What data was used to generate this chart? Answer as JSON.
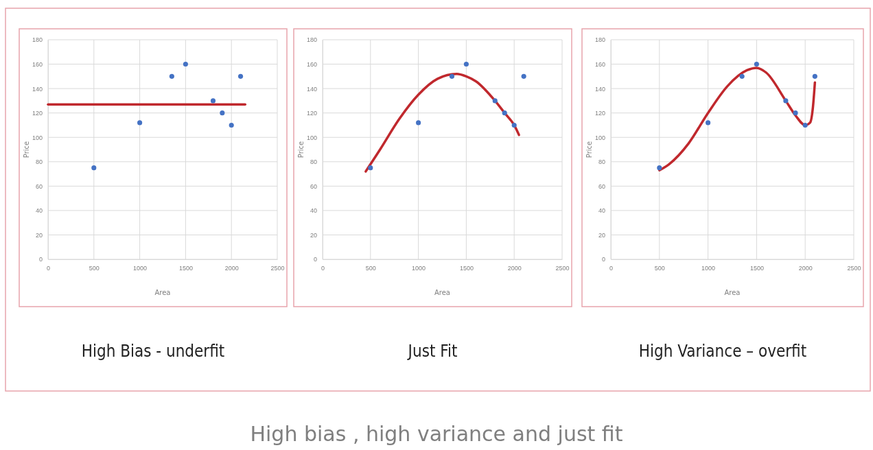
{
  "chart_data": [
    {
      "type": "scatter",
      "title": "High Bias - underfit",
      "xlabel": "Area",
      "ylabel": "Price",
      "xlim": [
        0,
        2500
      ],
      "xticks": [
        0,
        500,
        1000,
        1500,
        2000,
        2500
      ],
      "ylim": [
        0,
        180
      ],
      "yticks": [
        0,
        20,
        40,
        60,
        80,
        100,
        120,
        140,
        160,
        180
      ],
      "grid": true,
      "series": [
        {
          "type": "scatter",
          "color": "#4472c4",
          "x": [
            500,
            1000,
            1350,
            1500,
            1800,
            1900,
            2000,
            2100
          ],
          "values": [
            75,
            112,
            150,
            160,
            130,
            120,
            110,
            150
          ]
        },
        {
          "type": "line",
          "color": "#c0282d",
          "x": [
            0,
            2150
          ],
          "values": [
            127,
            127
          ]
        }
      ]
    },
    {
      "type": "scatter",
      "title": "Just Fit",
      "xlabel": "Area",
      "ylabel": "Price",
      "xlim": [
        0,
        2500
      ],
      "xticks": [
        0,
        500,
        1000,
        1500,
        2000,
        2500
      ],
      "ylim": [
        0,
        180
      ],
      "yticks": [
        0,
        20,
        40,
        60,
        80,
        100,
        120,
        140,
        160,
        180
      ],
      "grid": true,
      "series": [
        {
          "type": "scatter",
          "color": "#4472c4",
          "x": [
            500,
            1000,
            1350,
            1500,
            1800,
            1900,
            2000,
            2100
          ],
          "values": [
            75,
            112,
            150,
            160,
            130,
            120,
            110,
            150
          ]
        },
        {
          "type": "line",
          "color": "#c0282d",
          "x": [
            450,
            600,
            800,
            1000,
            1200,
            1400,
            1500,
            1600,
            1800,
            1900,
            2000,
            2050
          ],
          "values": [
            72,
            90,
            115,
            135,
            148,
            152,
            150,
            146,
            130,
            120,
            110,
            102
          ]
        }
      ]
    },
    {
      "type": "scatter",
      "title": "High Variance – overfit",
      "xlabel": "Area",
      "ylabel": "Price",
      "xlim": [
        0,
        2500
      ],
      "xticks": [
        0,
        500,
        1000,
        1500,
        2000,
        2500
      ],
      "ylim": [
        0,
        180
      ],
      "yticks": [
        0,
        20,
        40,
        60,
        80,
        100,
        120,
        140,
        160,
        180
      ],
      "grid": true,
      "annotations": [
        "High bias , high variance and just fit"
      ],
      "series": [
        {
          "type": "scatter",
          "color": "#4472c4",
          "x": [
            500,
            1000,
            1350,
            1500,
            1800,
            1900,
            2000,
            2100
          ],
          "values": [
            75,
            112,
            150,
            160,
            130,
            120,
            110,
            150
          ]
        },
        {
          "type": "line",
          "color": "#c0282d",
          "x": [
            500,
            600,
            800,
            1000,
            1200,
            1400,
            1500,
            1600,
            1800,
            1900,
            2000,
            2050,
            2080,
            2100
          ],
          "values": [
            73,
            78,
            95,
            120,
            142,
            155,
            157,
            153,
            130,
            118,
            110,
            112,
            125,
            145
          ]
        }
      ]
    }
  ]
}
